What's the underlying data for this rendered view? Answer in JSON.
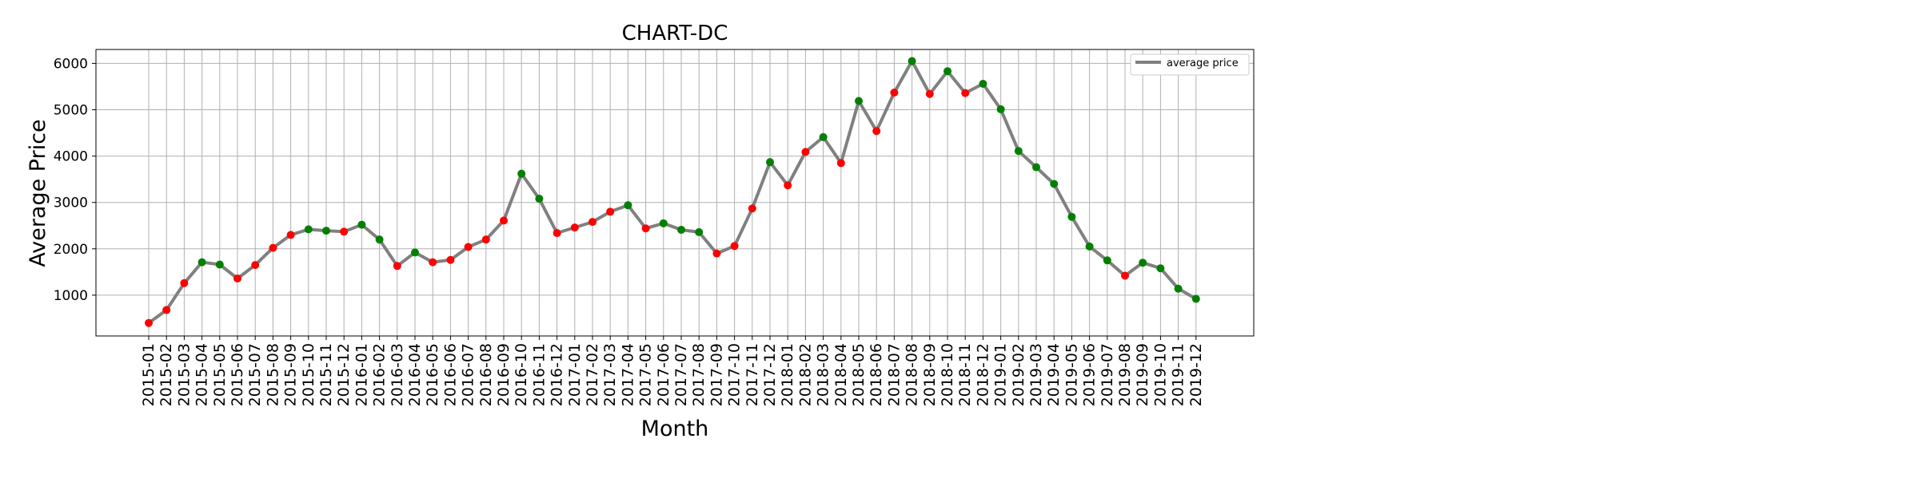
{
  "chart_data": {
    "type": "line",
    "title": "CHART-DC",
    "xlabel": "Month",
    "ylabel": "Average Price",
    "categories": [
      "2015-01",
      "2015-02",
      "2015-03",
      "2015-04",
      "2015-05",
      "2015-06",
      "2015-07",
      "2015-08",
      "2015-09",
      "2015-10",
      "2015-11",
      "2015-12",
      "2016-01",
      "2016-02",
      "2016-03",
      "2016-04",
      "2016-05",
      "2016-06",
      "2016-07",
      "2016-08",
      "2016-09",
      "2016-10",
      "2016-11",
      "2016-12",
      "2017-01",
      "2017-02",
      "2017-03",
      "2017-04",
      "2017-05",
      "2017-06",
      "2017-07",
      "2017-08",
      "2017-09",
      "2017-10",
      "2017-11",
      "2017-12",
      "2018-01",
      "2018-02",
      "2018-03",
      "2018-04",
      "2018-05",
      "2018-06",
      "2018-07",
      "2018-08",
      "2018-09",
      "2018-10",
      "2018-11",
      "2018-12",
      "2019-01",
      "2019-02",
      "2019-03",
      "2019-04",
      "2019-05",
      "2019-06",
      "2019-07",
      "2019-08",
      "2019-09",
      "2019-10",
      "2019-11",
      "2019-12"
    ],
    "series": [
      {
        "name": "average price",
        "color": "#808080",
        "values": [
          400,
          680,
          1260,
          1710,
          1660,
          1360,
          1650,
          2020,
          2300,
          2420,
          2390,
          2370,
          2520,
          2200,
          1630,
          1920,
          1710,
          1760,
          2040,
          2200,
          2610,
          3620,
          3080,
          2340,
          2460,
          2580,
          2800,
          2940,
          2440,
          2550,
          2410,
          2360,
          1900,
          2060,
          2870,
          3870,
          3370,
          4090,
          4410,
          3850,
          5190,
          4540,
          5370,
          6050,
          5340,
          5830,
          5360,
          5560,
          5010,
          4110,
          3760,
          3400,
          2690,
          2050,
          1750,
          1420,
          1700,
          1580,
          1140,
          920
        ]
      }
    ],
    "marker_colors": {
      "up": "#008000",
      "down": "#ff0000"
    },
    "ylim": [
      120,
      6300
    ],
    "yticks": [
      1000,
      2000,
      3000,
      4000,
      5000,
      6000
    ],
    "grid": true,
    "legend_position": "top-right"
  }
}
